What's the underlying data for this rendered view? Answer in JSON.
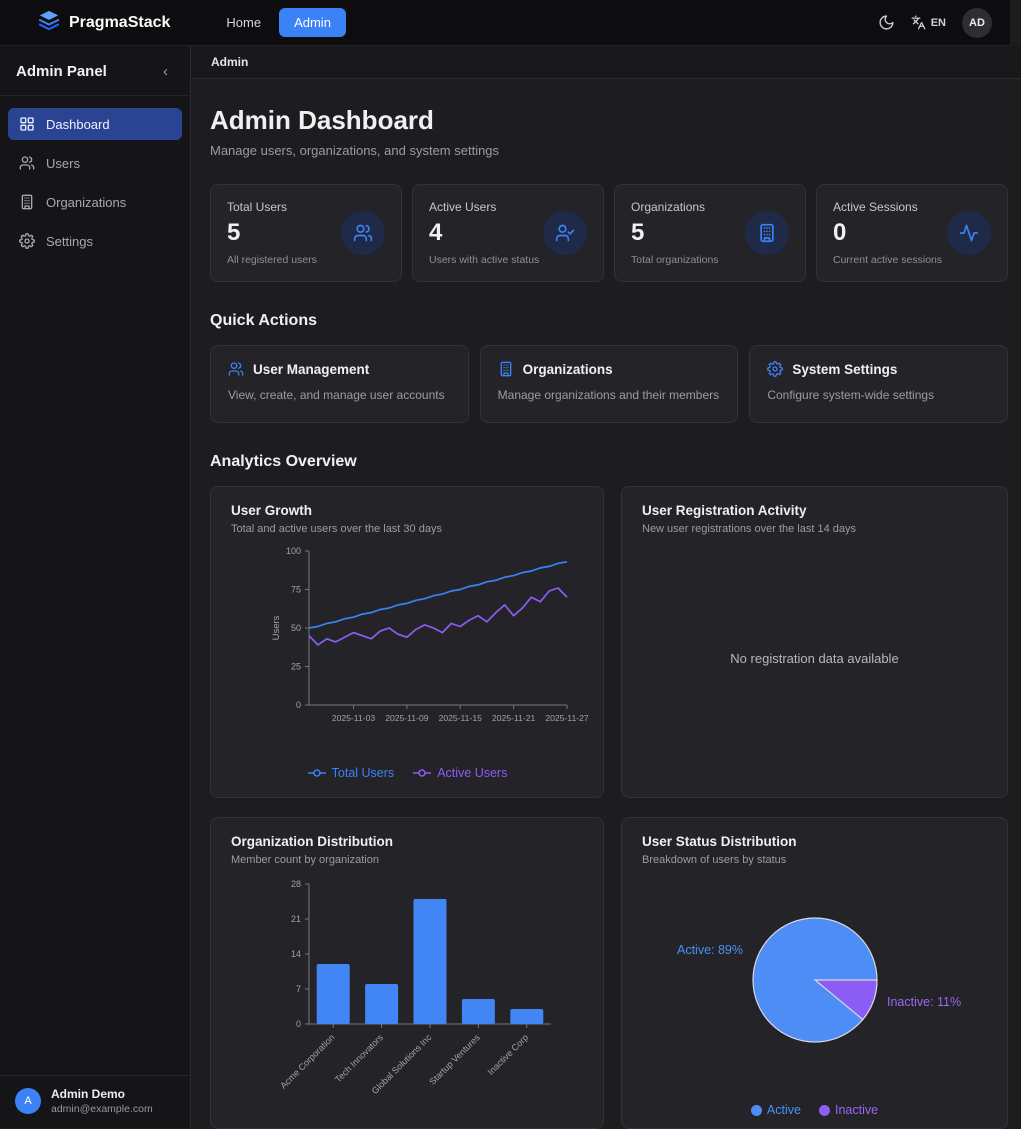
{
  "colors": {
    "accent_blue": "#3b82f6",
    "purple": "#8b5cf6",
    "pie_blue": "#4e8df6",
    "bar_blue": "#4285f4",
    "active_label_blue": "#4a90f5",
    "inactive_label_purple": "#9a66f2",
    "axis": "#76767c",
    "tick_text": "#a2a2a8"
  },
  "navbar": {
    "brand": "PragmaStack",
    "links": [
      {
        "label": "Home",
        "active": false
      },
      {
        "label": "Admin",
        "active": true
      }
    ],
    "lang": "EN",
    "avatar": "AD"
  },
  "sidebar": {
    "title": "Admin Panel",
    "collapse_icon": "‹",
    "items": [
      {
        "label": "Dashboard",
        "icon": "dashboard-grid-icon",
        "active": true
      },
      {
        "label": "Users",
        "icon": "users-icon",
        "active": false
      },
      {
        "label": "Organizations",
        "icon": "building-icon",
        "active": false
      },
      {
        "label": "Settings",
        "icon": "gear-icon",
        "active": false
      }
    ],
    "user": {
      "initial": "A",
      "name": "Admin Demo",
      "email": "admin@example.com"
    }
  },
  "breadcrumb": "Admin",
  "page": {
    "title": "Admin Dashboard",
    "subtitle": "Manage users, organizations, and system settings"
  },
  "stats": [
    {
      "label": "Total Users",
      "value": "5",
      "desc": "All registered users",
      "icon": "users-icon"
    },
    {
      "label": "Active Users",
      "value": "4",
      "desc": "Users with active status",
      "icon": "user-check-icon"
    },
    {
      "label": "Organizations",
      "value": "5",
      "desc": "Total organizations",
      "icon": "building-icon"
    },
    {
      "label": "Active Sessions",
      "value": "0",
      "desc": "Current active sessions",
      "icon": "activity-icon"
    }
  ],
  "quick_actions": {
    "heading": "Quick Actions",
    "items": [
      {
        "title": "User Management",
        "desc": "View, create, and manage user accounts",
        "icon": "users-icon"
      },
      {
        "title": "Organizations",
        "desc": "Manage organizations and their members",
        "icon": "building-icon"
      },
      {
        "title": "System Settings",
        "desc": "Configure system-wide settings",
        "icon": "gear-icon"
      }
    ]
  },
  "analytics_heading": "Analytics Overview",
  "chart_data": [
    {
      "type": "line",
      "title": "User Growth",
      "subtitle": "Total and active users over the last 30 days",
      "ylabel": "Users",
      "ylim": [
        0,
        100
      ],
      "yticks": [
        0,
        25,
        50,
        75,
        100
      ],
      "x": [
        "2025-10-29",
        "2025-10-30",
        "2025-10-31",
        "2025-11-01",
        "2025-11-02",
        "2025-11-03",
        "2025-11-04",
        "2025-11-05",
        "2025-11-06",
        "2025-11-07",
        "2025-11-08",
        "2025-11-09",
        "2025-11-10",
        "2025-11-11",
        "2025-11-12",
        "2025-11-13",
        "2025-11-14",
        "2025-11-15",
        "2025-11-16",
        "2025-11-17",
        "2025-11-18",
        "2025-11-19",
        "2025-11-20",
        "2025-11-21",
        "2025-11-22",
        "2025-11-23",
        "2025-11-24",
        "2025-11-25",
        "2025-11-26",
        "2025-11-27"
      ],
      "xtick_labels": [
        "2025-11-03",
        "2025-11-09",
        "2025-11-15",
        "2025-11-21",
        "2025-11-27"
      ],
      "xtick_indices": [
        5,
        11,
        17,
        23,
        29
      ],
      "series": [
        {
          "name": "Total Users",
          "color": "#3b82f6",
          "values": [
            50,
            51,
            53,
            54,
            56,
            57,
            59,
            60,
            62,
            63,
            65,
            66,
            68,
            69,
            71,
            72,
            74,
            75,
            77,
            78,
            80,
            81,
            83,
            84,
            86,
            87,
            89,
            90,
            92,
            93
          ]
        },
        {
          "name": "Active Users",
          "color": "#8b5cf6",
          "values": [
            45,
            39,
            43,
            41,
            44,
            47,
            45,
            43,
            48,
            50,
            46,
            44,
            49,
            52,
            50,
            47,
            53,
            51,
            55,
            58,
            54,
            60,
            65,
            58,
            63,
            70,
            67,
            74,
            76,
            70
          ]
        }
      ],
      "legend_position": "bottom"
    },
    {
      "type": "empty",
      "title": "User Registration Activity",
      "subtitle": "New user registrations over the last 14 days",
      "message": "No registration data available"
    },
    {
      "type": "bar",
      "title": "Organization Distribution",
      "subtitle": "Member count by organization",
      "categories": [
        "Acme Corporation",
        "Tech Innovators",
        "Global Solutions Inc",
        "Startup Ventures",
        "Inactive Corp"
      ],
      "values": [
        12,
        8,
        25,
        5,
        3
      ],
      "ylim": [
        0,
        28
      ],
      "yticks": [
        0,
        7,
        14,
        21,
        28
      ],
      "bar_color": "#4285f4"
    },
    {
      "type": "pie",
      "title": "User Status Distribution",
      "subtitle": "Breakdown of users by status",
      "slices": [
        {
          "name": "Active",
          "pct": 89,
          "color": "#4e8df6",
          "callout": "Active: 89%",
          "label_color": "#4a90f5"
        },
        {
          "name": "Inactive",
          "pct": 11,
          "color": "#8b5cf6",
          "callout": "Inactive: 11%",
          "label_color": "#9a66f2"
        }
      ],
      "legend_position": "bottom"
    }
  ]
}
